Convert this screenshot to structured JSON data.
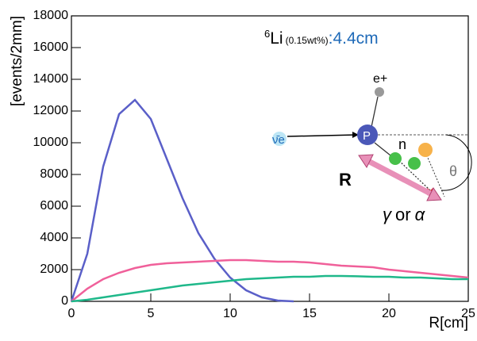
{
  "chart_data": {
    "type": "line",
    "x": [
      0,
      1,
      2,
      3,
      4,
      5,
      6,
      7,
      8,
      9,
      10,
      11,
      12,
      13,
      14,
      15,
      16,
      17,
      18,
      19,
      20,
      21,
      22,
      23,
      24,
      25
    ],
    "series": [
      {
        "color": "#5a5fc8",
        "values": [
          0,
          3000,
          8500,
          11800,
          12700,
          11500,
          9000,
          6500,
          4300,
          2700,
          1500,
          700,
          250,
          50,
          0,
          null,
          null,
          null,
          null,
          null,
          null,
          null,
          null,
          null,
          null,
          null
        ]
      },
      {
        "color": "#f0609a",
        "values": [
          0,
          800,
          1400,
          1800,
          2100,
          2300,
          2400,
          2450,
          2500,
          2550,
          2600,
          2600,
          2550,
          2500,
          2500,
          2450,
          2350,
          2250,
          2200,
          2150,
          2000,
          1900,
          1800,
          1700,
          1600,
          1500
        ]
      },
      {
        "color": "#1fb88a",
        "values": [
          0,
          100,
          250,
          400,
          550,
          700,
          850,
          1000,
          1100,
          1200,
          1300,
          1400,
          1450,
          1500,
          1550,
          1550,
          1600,
          1600,
          1580,
          1550,
          1550,
          1500,
          1500,
          1450,
          1400,
          1400
        ]
      }
    ],
    "xlim": [
      0,
      25
    ],
    "ylim": [
      0,
      18000
    ],
    "xticks": [
      0,
      5,
      10,
      15,
      20,
      25
    ],
    "yticks": [
      0,
      2000,
      4000,
      6000,
      8000,
      10000,
      12000,
      14000,
      16000,
      18000
    ],
    "xlabel": "R[cm]",
    "ylabel": "[events/2mm]",
    "annotation": {
      "mass": "6",
      "element": "Li",
      "concentration": "(0.15wt%)",
      "length": ":4.4cm"
    },
    "inset": {
      "positron": "e+",
      "antineutrino": "ν̄e",
      "proton": "P",
      "neutron": "n",
      "angle": "θ",
      "distance": "R",
      "gamma": "γ",
      "or": "or",
      "alpha": "α"
    }
  }
}
